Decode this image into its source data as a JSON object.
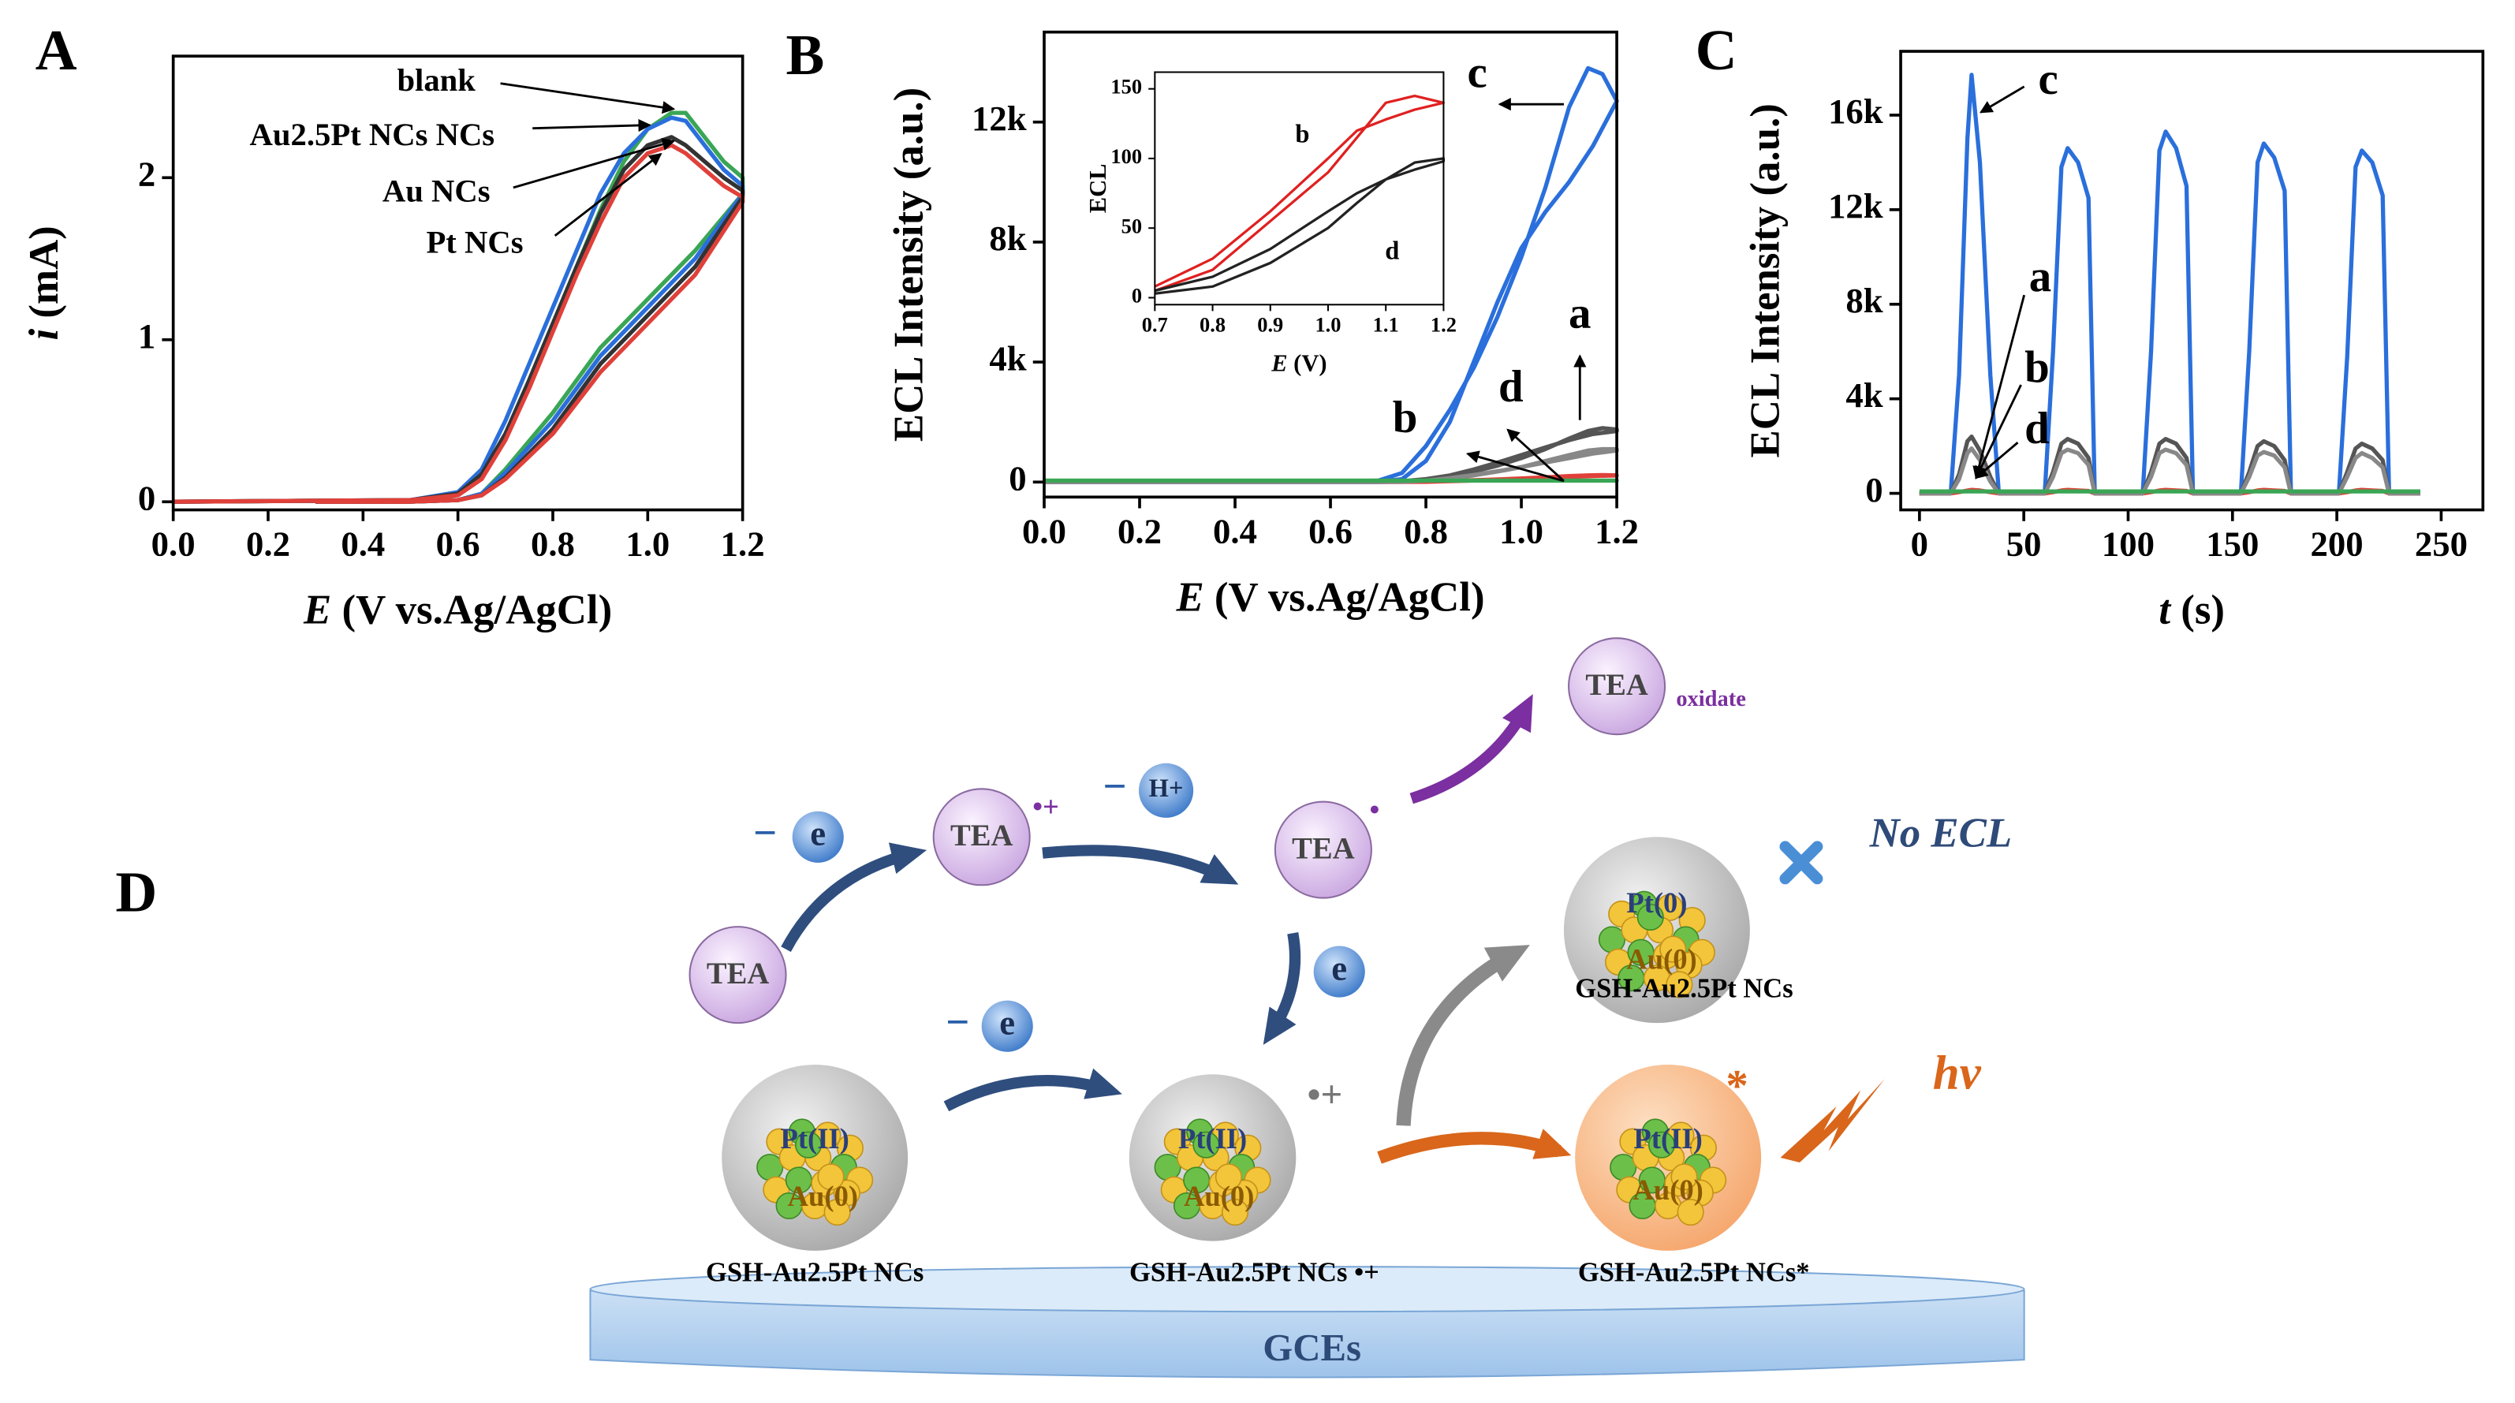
{
  "chart_data": [
    {
      "type": "line",
      "panel": "A",
      "x_label": {
        "symbol": "E",
        "unit": "(V vs.Ag/AgCl)"
      },
      "y_label": {
        "symbol": "i",
        "unit": "(mA)"
      },
      "xlim": [
        0,
        1.2
      ],
      "xticks": [
        {
          "value": 0,
          "label": "0.0"
        },
        0.2,
        0.4,
        0.6,
        0.8,
        {
          "value": 1,
          "label": "1.0"
        },
        1.2
      ],
      "ylim": [
        -0.05,
        2.75
      ],
      "yticks": [
        0,
        1,
        2
      ],
      "x": [
        0,
        0.5,
        0.6,
        0.65,
        0.7,
        0.75,
        0.8,
        0.85,
        0.9,
        0.95,
        1.0,
        1.05,
        1.08,
        1.12,
        1.16,
        1.2,
        1.2,
        1.1,
        1.0,
        0.9,
        0.8,
        0.7,
        0.65,
        0.6,
        0.5,
        0.3
      ],
      "series": [
        {
          "name": "blank",
          "color": "#3aa655",
          "values": [
            0,
            0.01,
            0.05,
            0.15,
            0.4,
            0.75,
            1.1,
            1.45,
            1.8,
            2.1,
            2.3,
            2.4,
            2.4,
            2.25,
            2.1,
            2.0,
            1.9,
            1.55,
            1.25,
            0.95,
            0.55,
            0.2,
            0.05,
            0.01,
            0,
            0
          ]
        },
        {
          "name": "Au2.5Pt NCs NCs",
          "color": "#2a6fdb",
          "values": [
            0,
            0.01,
            0.06,
            0.2,
            0.5,
            0.85,
            1.2,
            1.55,
            1.9,
            2.15,
            2.3,
            2.37,
            2.35,
            2.2,
            2.05,
            1.95,
            1.9,
            1.5,
            1.2,
            0.9,
            0.5,
            0.18,
            0.05,
            0.01,
            0,
            0
          ]
        },
        {
          "name": "Au NCs",
          "color": "#333333",
          "values": [
            0,
            0.01,
            0.05,
            0.17,
            0.42,
            0.75,
            1.1,
            1.45,
            1.78,
            2.05,
            2.2,
            2.25,
            2.2,
            2.1,
            2.0,
            1.92,
            1.88,
            1.45,
            1.15,
            0.85,
            0.45,
            0.15,
            0.04,
            0.01,
            0,
            0
          ]
        },
        {
          "name": "Pt NCs",
          "color": "#e0403a",
          "values": [
            0,
            0.01,
            0.04,
            0.14,
            0.38,
            0.7,
            1.05,
            1.4,
            1.72,
            2.0,
            2.15,
            2.2,
            2.15,
            2.05,
            1.95,
            1.88,
            1.85,
            1.4,
            1.1,
            0.8,
            0.42,
            0.14,
            0.04,
            0.01,
            0,
            0
          ]
        }
      ]
    },
    {
      "type": "line",
      "panel": "B",
      "x_label": {
        "symbol": "E",
        "unit": "(V vs.Ag/AgCl)"
      },
      "y_label": "ECL Intensity (a.u.)",
      "xlim": [
        0,
        1.2
      ],
      "xticks": [
        {
          "value": 0,
          "label": "0.0"
        },
        0.2,
        0.4,
        0.6,
        0.8,
        {
          "value": 1,
          "label": "1.0"
        },
        1.2
      ],
      "ylim": [
        -500,
        15000
      ],
      "yticks": [
        0,
        {
          "value": 4000,
          "label": "4k"
        },
        {
          "value": 8000,
          "label": "8k"
        },
        {
          "value": 12000,
          "label": "12k"
        }
      ],
      "x": [
        0,
        0.6,
        0.7,
        0.75,
        0.8,
        0.85,
        0.9,
        0.95,
        1.0,
        1.05,
        1.1,
        1.14,
        1.17,
        1.2,
        1.2,
        1.15,
        1.1,
        1.05,
        1.0,
        0.95,
        0.9,
        0.85,
        0.8,
        0.75,
        0.7,
        0.6,
        0
      ],
      "series": [
        {
          "name": "a",
          "color": "#555555",
          "values": [
            0,
            0,
            0,
            20,
            80,
            200,
            350,
            550,
            800,
            1100,
            1450,
            1700,
            1800,
            1750,
            1700,
            1600,
            1400,
            1150,
            900,
            650,
            420,
            220,
            100,
            30,
            0,
            0,
            0
          ]
        },
        {
          "name": "b",
          "color": "#e0403a",
          "values": [
            0,
            0,
            0,
            0,
            20,
            40,
            60,
            90,
            120,
            160,
            200,
            220,
            230,
            220,
            220,
            200,
            170,
            140,
            110,
            80,
            50,
            30,
            10,
            0,
            0,
            0,
            0
          ]
        },
        {
          "name": "c",
          "color": "#2a6fdb",
          "values": [
            0,
            0,
            50,
            300,
            1200,
            2400,
            3800,
            5500,
            7500,
            9800,
            12500,
            13800,
            13600,
            12700,
            12700,
            11200,
            10000,
            9000,
            7800,
            6000,
            4000,
            2000,
            700,
            100,
            0,
            0,
            0
          ]
        },
        {
          "name": "d",
          "color": "#888888",
          "values": [
            0,
            0,
            0,
            10,
            50,
            120,
            220,
            350,
            500,
            700,
            900,
            1050,
            1100,
            1100,
            1050,
            950,
            800,
            650,
            500,
            360,
            240,
            130,
            50,
            10,
            0,
            0,
            0
          ]
        },
        {
          "color": "#3aa655",
          "values": [
            50,
            50,
            50,
            50,
            50,
            50,
            50,
            50,
            50,
            50,
            50,
            50,
            50,
            50,
            50,
            50,
            50,
            50,
            50,
            50,
            50,
            50,
            50,
            50,
            50,
            50,
            50
          ]
        }
      ]
    },
    {
      "type": "line",
      "x_label": {
        "symbol": "E",
        "unit": "(V)"
      },
      "y_label": "ECL",
      "xlim": [
        0.7,
        1.2
      ],
      "xticks": [
        0.7,
        0.8,
        0.9,
        {
          "value": 1,
          "label": "1.0"
        },
        1.1,
        1.2
      ],
      "ylim": [
        -5,
        162
      ],
      "yticks": [
        0,
        50,
        100,
        150
      ],
      "x": [
        0.7,
        0.8,
        0.9,
        1.0,
        1.05,
        1.1,
        1.15,
        1.2,
        1.2,
        1.15,
        1.1,
        1.05,
        1.0,
        0.9,
        0.8,
        0.7
      ],
      "series": [
        {
          "name": "b",
          "color": "#e02020",
          "values": [
            5,
            20,
            55,
            90,
            115,
            140,
            145,
            140,
            140,
            135,
            128,
            120,
            100,
            62,
            28,
            8
          ]
        },
        {
          "name": "d",
          "color": "#222222",
          "values": [
            3,
            8,
            25,
            50,
            68,
            85,
            97,
            100,
            98,
            92,
            85,
            75,
            62,
            35,
            15,
            5
          ]
        }
      ]
    },
    {
      "type": "line",
      "panel": "C",
      "x_label": {
        "symbol": "t",
        "unit": "(s)"
      },
      "y_label": "ECL Intensity (a.u.)",
      "xlim": [
        -9,
        270
      ],
      "xticks": [
        0,
        50,
        100,
        150,
        200,
        250
      ],
      "ylim": [
        -700,
        18700
      ],
      "yticks": [
        0,
        {
          "value": 4000,
          "label": "4k"
        },
        {
          "value": 8000,
          "label": "8k"
        },
        {
          "value": 12000,
          "label": "12k"
        },
        {
          "value": 16000,
          "label": "16k"
        }
      ],
      "x": [
        0,
        15,
        19,
        23,
        25,
        29,
        34,
        38,
        60,
        64,
        68,
        71,
        76,
        81,
        84,
        107,
        111,
        115,
        118,
        123,
        128,
        131,
        154,
        158,
        162,
        165,
        170,
        175,
        178,
        201,
        205,
        209,
        212,
        217,
        222,
        225,
        240
      ],
      "series": [
        {
          "name": "c",
          "color": "#2a6fdb",
          "values": [
            0,
            0,
            5000,
            15000,
            17700,
            14000,
            5000,
            0,
            0,
            6000,
            13800,
            14600,
            14000,
            12500,
            0,
            0,
            6000,
            14500,
            15300,
            14600,
            13000,
            0,
            0,
            6000,
            14000,
            14800,
            14200,
            12800,
            0,
            0,
            5800,
            13800,
            14500,
            14000,
            12600,
            0,
            0
          ]
        },
        {
          "name": "a",
          "color": "#555555",
          "values": [
            0,
            0,
            800,
            2200,
            2400,
            1800,
            700,
            0,
            0,
            900,
            2100,
            2300,
            2100,
            1500,
            0,
            0,
            900,
            2100,
            2300,
            2100,
            1500,
            0,
            0,
            900,
            2000,
            2200,
            2000,
            1400,
            0,
            0,
            900,
            1900,
            2100,
            1900,
            1400,
            0,
            0
          ]
        },
        {
          "name": "b",
          "color": "#e0403a",
          "values": [
            0,
            0,
            50,
            120,
            150,
            120,
            50,
            0,
            0,
            50,
            120,
            150,
            120,
            100,
            0,
            0,
            50,
            120,
            150,
            120,
            100,
            0,
            0,
            50,
            120,
            150,
            120,
            100,
            0,
            0,
            50,
            120,
            150,
            120,
            100,
            0,
            0
          ]
        },
        {
          "name": "d",
          "color": "#888888",
          "values": [
            0,
            0,
            600,
            1700,
            1900,
            1400,
            500,
            0,
            0,
            700,
            1700,
            1850,
            1700,
            1200,
            0,
            0,
            700,
            1700,
            1850,
            1700,
            1200,
            0,
            0,
            700,
            1600,
            1750,
            1600,
            1100,
            0,
            0,
            700,
            1500,
            1700,
            1500,
            1100,
            0,
            0
          ]
        },
        {
          "color": "#3aa655",
          "values": [
            80,
            80,
            80,
            80,
            80,
            80,
            80,
            80,
            80,
            80,
            80,
            80,
            80,
            80,
            80,
            80,
            80,
            80,
            80,
            80,
            80,
            80,
            80,
            80,
            80,
            80,
            80,
            80,
            80,
            80,
            80,
            80,
            80,
            80,
            80,
            80,
            80
          ]
        }
      ]
    }
  ],
  "diagram": {
    "label": "D",
    "tea": [
      "TEA",
      "TEA",
      "TEA",
      "TEA"
    ],
    "tea_marks": [
      "•+",
      "•"
    ],
    "oxidate": "oxidate",
    "electron_steps": [
      {
        "sign": "−",
        "symbol": "e"
      },
      {
        "sign": "−",
        "symbol": "H+"
      },
      {
        "symbol": "e"
      },
      {
        "sign": "−",
        "symbol": "e"
      }
    ],
    "clusters": [
      {
        "core": [
          "Pt(II)",
          "Au(0)"
        ],
        "name": "GSH-Au2.5Pt NCs"
      },
      {
        "core": [
          "Pt(II)",
          "Au(0)"
        ],
        "name": "GSH-Au2.5Pt NCs •+",
        "charge": "•+"
      },
      {
        "core": [
          "Pt(0)",
          "Au(0)"
        ],
        "name": "GSH-Au2.5Pt NCs"
      },
      {
        "core": [
          "Pt(II)",
          "Au(0)"
        ],
        "name": "GSH-Au2.5Pt NCs*",
        "excited": "*"
      }
    ],
    "no_ecl": "No ECL",
    "hv": "hv",
    "electrode": "GCEs"
  }
}
